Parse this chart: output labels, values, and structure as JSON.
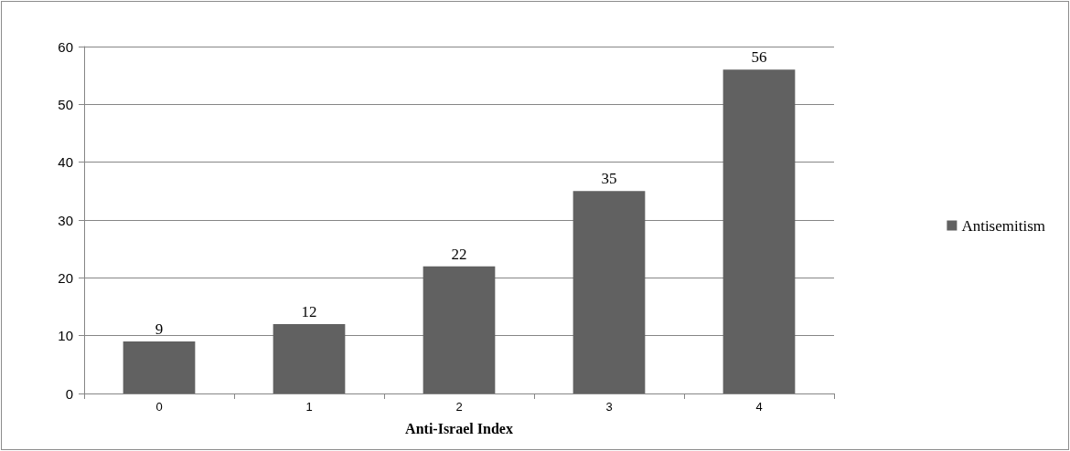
{
  "chart_data": {
    "type": "bar",
    "xlabel": "Anti-Israel Index",
    "categories": [
      "0",
      "1",
      "2",
      "3",
      "4"
    ],
    "series": [
      {
        "name": "Antisemitism",
        "color": "#616161",
        "values": [
          9,
          12,
          22,
          35,
          56
        ]
      }
    ],
    "ylim": [
      0,
      60
    ],
    "yticks": [
      0,
      10,
      20,
      30,
      40,
      50,
      60
    ],
    "grid": "y",
    "legend": "right",
    "data_labels": true
  }
}
